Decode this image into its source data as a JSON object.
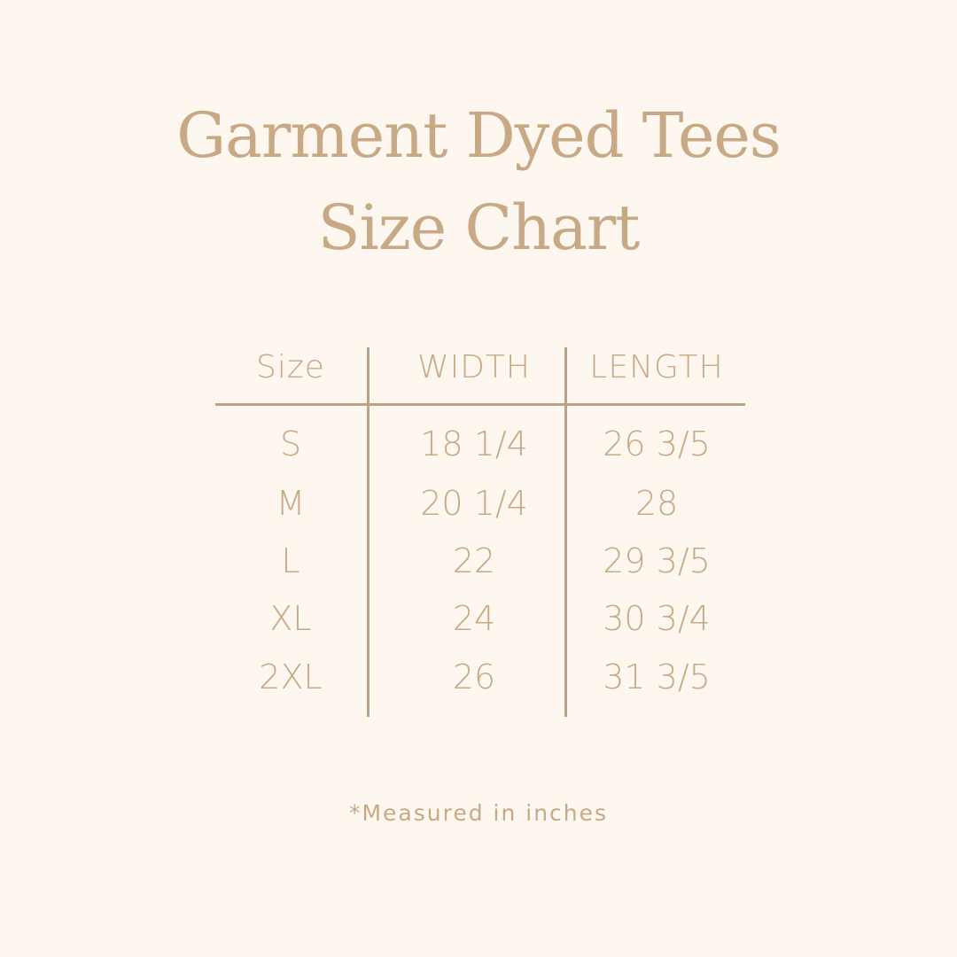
{
  "title": {
    "line1": "Garment Dyed Tees",
    "line2": "Size Chart"
  },
  "table": {
    "headers": [
      "Size",
      "WIDTH",
      "LENGTH"
    ],
    "rows": [
      [
        "S",
        "18 1/4",
        "26 3/5"
      ],
      [
        "M",
        "20 1/4",
        "28"
      ],
      [
        "L",
        "22",
        "29 3/5"
      ],
      [
        "XL",
        "24",
        "30 3/4"
      ],
      [
        "2XL",
        "26",
        "31 3/5"
      ]
    ]
  },
  "footnote": "*Measured in inches",
  "colors": {
    "background": "#fdf7ef",
    "text": "#c8a985",
    "lines": "#bba286"
  }
}
